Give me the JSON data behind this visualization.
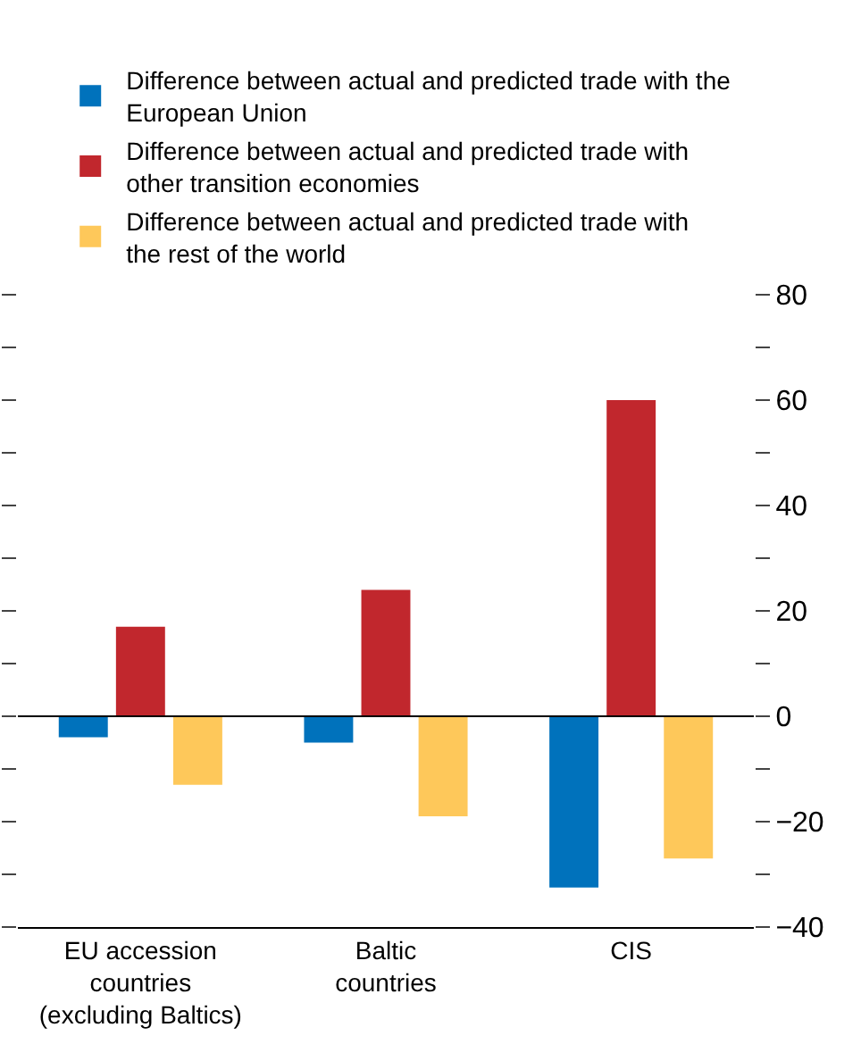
{
  "chart_data": {
    "type": "bar",
    "categories": [
      "EU accession\ncountries\n(excluding Baltics)",
      "Baltic\ncountries",
      "CIS"
    ],
    "series": [
      {
        "name": "Difference between actual and predicted trade with the\nEuropean Union",
        "color": "#0072bc",
        "values": [
          -4,
          -5,
          -32.5
        ]
      },
      {
        "name": "Difference between actual and predicted trade with\nother transition economies",
        "color": "#c1272d",
        "values": [
          17,
          24,
          60
        ]
      },
      {
        "name": "Difference between actual and predicted trade with\nthe rest of the world",
        "color": "#fec85a",
        "values": [
          -13,
          -19,
          -27
        ]
      }
    ],
    "ylim": [
      -40,
      80
    ],
    "yticks": [
      -40,
      {
        "value": -30,
        "label": null
      },
      {
        "value": -20,
        "label": "−20"
      },
      {
        "value": -10,
        "label": null
      },
      0,
      {
        "value": 10,
        "label": null
      },
      20,
      {
        "value": 30,
        "label": null
      },
      40,
      {
        "value": 50,
        "label": null
      },
      60,
      {
        "value": 70,
        "label": null
      },
      80
    ],
    "ref_lines": [
      {
        "axis": "y",
        "value": 0,
        "color": "#000000"
      }
    ],
    "grid": false,
    "legend": "top"
  }
}
